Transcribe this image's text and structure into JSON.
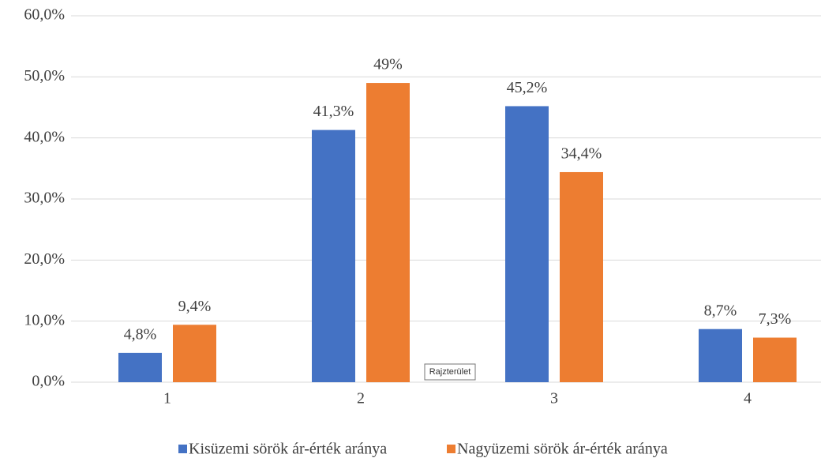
{
  "chart_data": {
    "type": "bar",
    "categories": [
      "1",
      "2",
      "3",
      "4"
    ],
    "series": [
      {
        "name": "Kisüzemi sörök ár-érték aránya",
        "color": "#4472c4",
        "values": [
          4.8,
          41.3,
          45.2,
          8.7
        ],
        "value_labels": [
          "4,8%",
          "41,3%",
          "45,2%",
          "8,7%"
        ]
      },
      {
        "name": "Nagyüzemi sörök ár-érték aránya",
        "color": "#ed7d31",
        "values": [
          9.4,
          49,
          34.4,
          7.3
        ],
        "value_labels": [
          "9,4%",
          "49%",
          "34,4%",
          "7,3%"
        ]
      }
    ],
    "ylim": [
      0,
      60
    ],
    "yticks": [
      {
        "value": 0,
        "label": "0,0%"
      },
      {
        "value": 10,
        "label": "10,0%"
      },
      {
        "value": 20,
        "label": "20,0%"
      },
      {
        "value": 30,
        "label": "30,0%"
      },
      {
        "value": 40,
        "label": "40,0%"
      },
      {
        "value": 50,
        "label": "50,0%"
      },
      {
        "value": 60,
        "label": "60,0%"
      }
    ],
    "grid": true,
    "legend": "bottom",
    "tooltip": "Rajzterület"
  }
}
